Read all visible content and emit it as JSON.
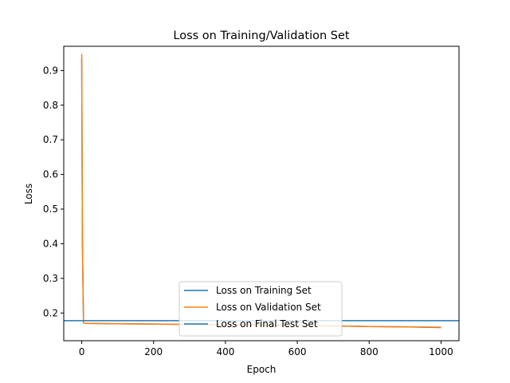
{
  "chart_data": {
    "type": "line",
    "title": "Loss on Training/Validation Set",
    "xlabel": "Epoch",
    "ylabel": "Loss",
    "xlim": [
      -50,
      1050
    ],
    "ylim": [
      0.12,
      0.97
    ],
    "xticks": [
      0,
      200,
      400,
      600,
      800,
      1000
    ],
    "yticks": [
      0.2,
      0.3,
      0.4,
      0.5,
      0.6,
      0.7,
      0.8,
      0.9
    ],
    "grid": false,
    "legend_position": "bottom-center",
    "series": [
      {
        "name": "Loss on Training Set",
        "color": "#1f77b4",
        "x": [
          0,
          2,
          5,
          10,
          100,
          200,
          300,
          400,
          500,
          600,
          700,
          800,
          900,
          1000
        ],
        "y": [
          0.935,
          0.4,
          0.172,
          0.17,
          0.169,
          0.168,
          0.167,
          0.166,
          0.165,
          0.164,
          0.163,
          0.161,
          0.16,
          0.158
        ]
      },
      {
        "name": "Loss on Validation Set",
        "color": "#ff7f0e",
        "x": [
          0,
          2,
          5,
          10,
          100,
          200,
          300,
          400,
          500,
          600,
          700,
          800,
          900,
          1000
        ],
        "y": [
          0.948,
          0.4,
          0.172,
          0.17,
          0.169,
          0.168,
          0.167,
          0.166,
          0.165,
          0.164,
          0.163,
          0.161,
          0.16,
          0.159
        ]
      },
      {
        "name": "Loss on Final Test Set",
        "color": "#1f77b4",
        "type": "hline",
        "y": 0.178
      }
    ]
  }
}
